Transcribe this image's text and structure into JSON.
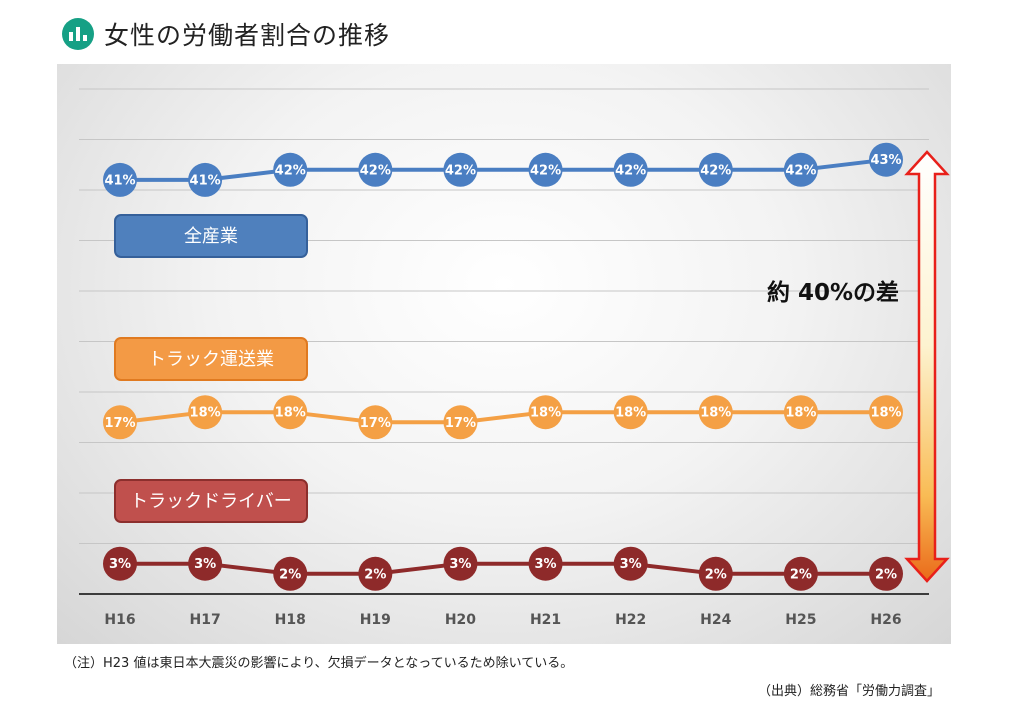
{
  "header": {
    "title": "女性の労働者割合の推移",
    "icon": "bar-chart-icon",
    "icon_color": "#16a085"
  },
  "chart_data": {
    "type": "line",
    "categories": [
      "H16",
      "H17",
      "H18",
      "H19",
      "H20",
      "H21",
      "H22",
      "H24",
      "H25",
      "H26"
    ],
    "ylim": [
      0,
      50
    ],
    "grid": true,
    "series": [
      {
        "name": "全産業",
        "color": "#4a7ec2",
        "text_color": "#ffffff",
        "values": [
          41,
          41,
          42,
          42,
          42,
          42,
          42,
          42,
          42,
          43
        ],
        "labels": [
          "41%",
          "41%",
          "42%",
          "42%",
          "42%",
          "42%",
          "42%",
          "42%",
          "42%",
          "43%"
        ]
      },
      {
        "name": "トラック運送業",
        "color": "#f4a045",
        "text_color": "#ffffff",
        "values": [
          17,
          18,
          18,
          17,
          17,
          18,
          18,
          18,
          18,
          18
        ],
        "labels": [
          "17%",
          "18%",
          "18%",
          "17%",
          "17%",
          "18%",
          "18%",
          "18%",
          "18%",
          "18%"
        ]
      },
      {
        "name": "トラックドライバー",
        "color": "#8e2a2a",
        "text_color": "#ffffff",
        "values": [
          3,
          3,
          2,
          2,
          3,
          3,
          3,
          2,
          2,
          2
        ],
        "labels": [
          "3%",
          "3%",
          "2%",
          "2%",
          "3%",
          "3%",
          "3%",
          "2%",
          "2%",
          "2%"
        ]
      }
    ],
    "series_boxes": [
      {
        "label": "全産業",
        "fill": "#4f80bd",
        "stroke": "#35609a"
      },
      {
        "label": "トラック運送業",
        "fill": "#f39a45",
        "stroke": "#e07a20"
      },
      {
        "label": "トラックドライバー",
        "fill": "#c0504d",
        "stroke": "#8c2f2d"
      }
    ],
    "annotation": "約 40%の差"
  },
  "footer": {
    "note": "（注）H23 値は東日本大震災の影響により、欠損データとなっているため除いている。",
    "source": "（出典）総務省「労働力調査」"
  }
}
